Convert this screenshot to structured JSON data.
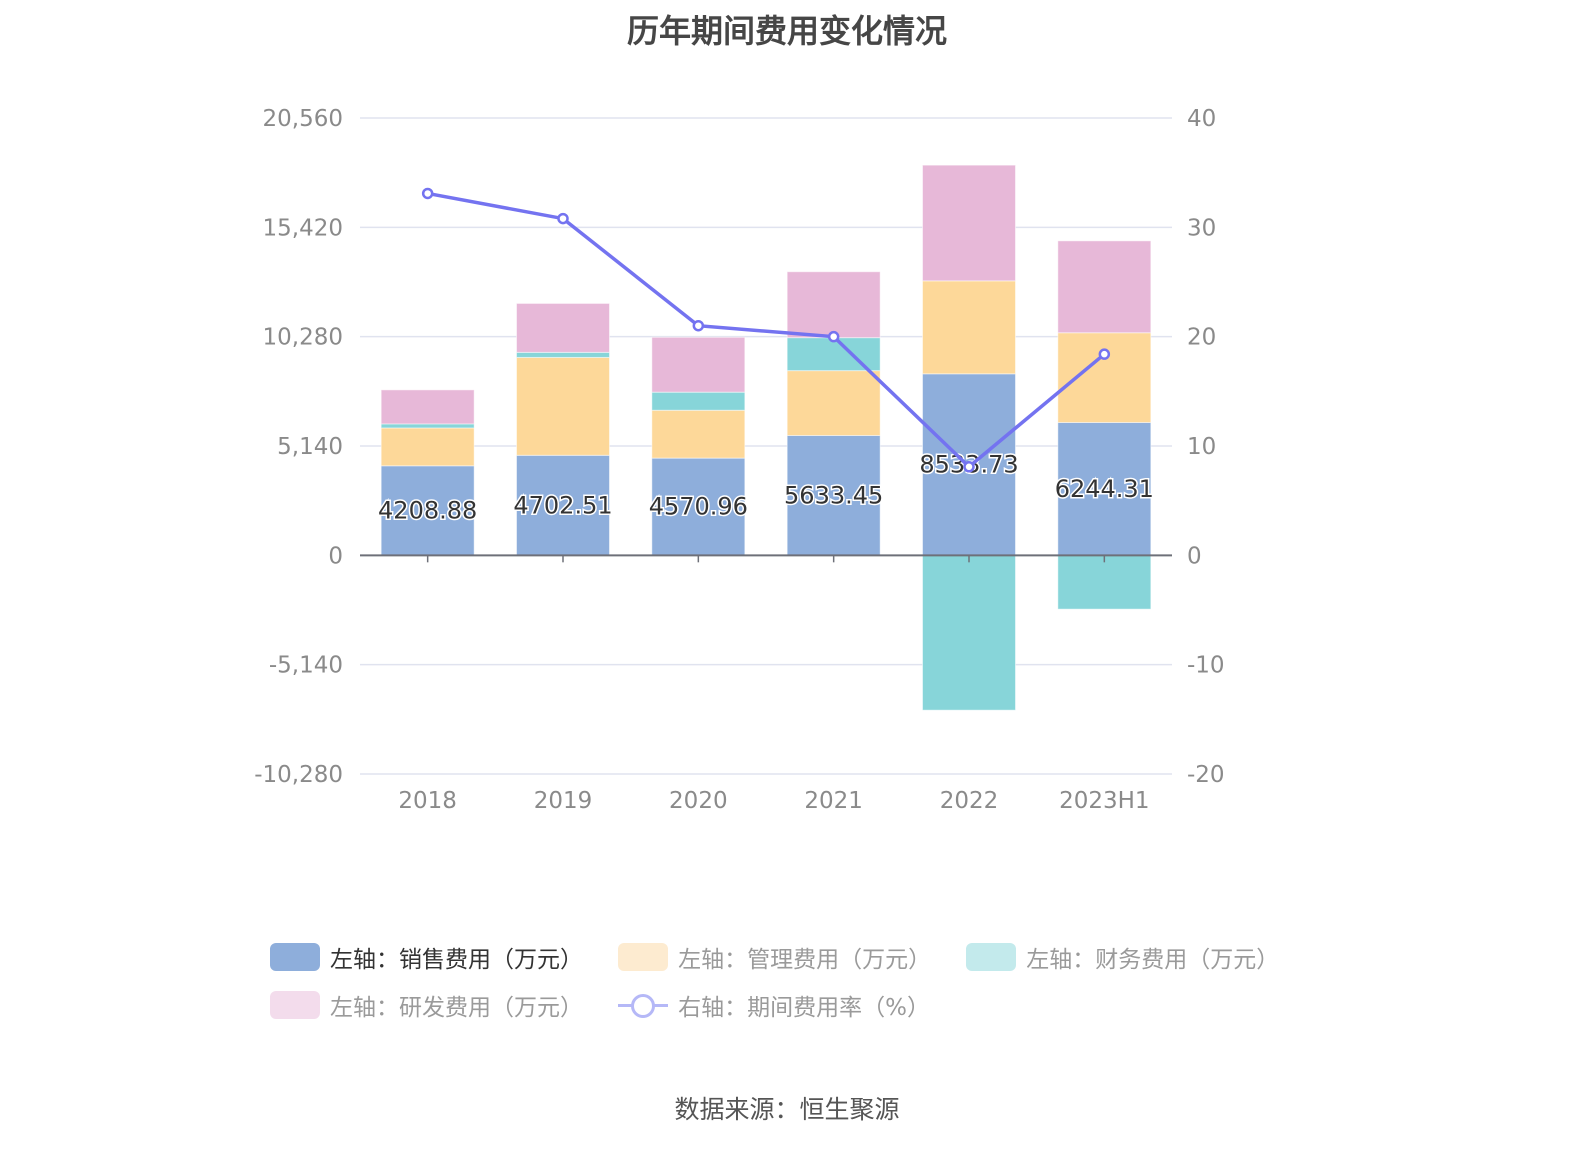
{
  "chart_data": {
    "type": "bar",
    "title": "历年期间费用变化情况",
    "categories": [
      "2018",
      "2019",
      "2020",
      "2021",
      "2022",
      "2023H1"
    ],
    "left_axis": {
      "ticks": [
        "20,560",
        "15,420",
        "10,280",
        "5,140",
        "0",
        "-5,140",
        "-10,280"
      ],
      "range": [
        -10280,
        20560
      ]
    },
    "right_axis": {
      "ticks": [
        "40",
        "30",
        "20",
        "10",
        "0",
        "-10",
        "-20"
      ],
      "range": [
        -20,
        40
      ]
    },
    "series": [
      {
        "name": "左轴：销售费用（万元）",
        "type": "bar",
        "stack": "fee",
        "color": "#8eaedb",
        "values": [
          4208.88,
          4702.51,
          4570.96,
          5633.45,
          8533.73,
          6244.31
        ],
        "labels": [
          "4208.88",
          "4702.51",
          "4570.96",
          "5633.45",
          "8533.73",
          "6244.31"
        ]
      },
      {
        "name": "左轴：管理费用（万元）",
        "type": "bar",
        "stack": "fee",
        "color": "#fdd899",
        "values": [
          1780,
          4600,
          2250,
          3050,
          4370,
          4220
        ]
      },
      {
        "name": "左轴：财务费用（万元）",
        "type": "bar",
        "stack": "fee",
        "color": "#87d5d9",
        "values": [
          190,
          240,
          850,
          1550,
          -7280,
          -2530
        ]
      },
      {
        "name": "左轴：研发费用（万元）",
        "type": "bar",
        "stack": "fee",
        "color": "#e7b8d8",
        "values": [
          1600,
          2300,
          2580,
          3100,
          5440,
          4320
        ]
      },
      {
        "name": "右轴：期间费用率（%）",
        "type": "line",
        "axis": "right",
        "color": "#7473f0",
        "values": [
          33.1,
          30.8,
          21.0,
          20.0,
          8.1,
          18.4
        ]
      }
    ],
    "legend_position": "bottom",
    "grid": true
  },
  "legend": [
    {
      "label": "左轴：销售费用（万元）",
      "color": "#8eaedb",
      "active": true
    },
    {
      "label": "左轴：管理费用（万元）",
      "color": "#fdebd0",
      "active": false
    },
    {
      "label": "左轴：财务费用（万元）",
      "color": "#c3eaec",
      "active": false
    },
    {
      "label": "左轴：研发费用（万元）",
      "color": "#f3dcec",
      "active": false
    },
    {
      "label": "右轴：期间费用率（%）",
      "line": true,
      "active": false
    }
  ],
  "source": "数据来源：恒生聚源"
}
